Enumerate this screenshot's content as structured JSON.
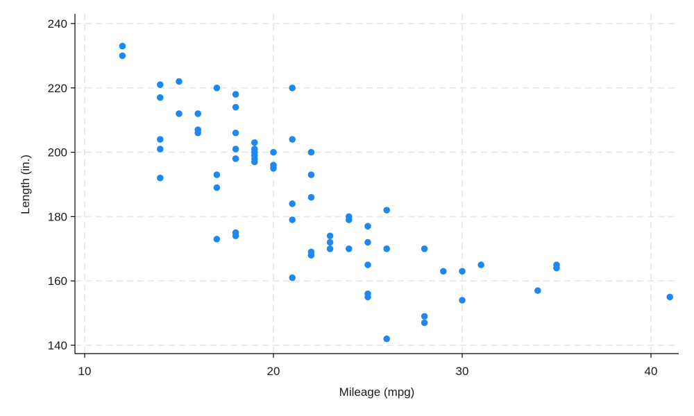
{
  "chart_data": {
    "type": "scatter",
    "title": "",
    "xlabel": "Mileage (mpg)",
    "ylabel": "Length (in.)",
    "xlim": [
      10,
      41
    ],
    "ylim": [
      140,
      240
    ],
    "xticks": [
      10,
      20,
      30,
      40
    ],
    "yticks": [
      140,
      160,
      180,
      200,
      220,
      240
    ],
    "grid": true,
    "legend": "none",
    "marker_color": "#1e88f0",
    "series": [
      {
        "points": [
          [
            12,
            233
          ],
          [
            12,
            230
          ],
          [
            14,
            221
          ],
          [
            14,
            217
          ],
          [
            14,
            204
          ],
          [
            14,
            201
          ],
          [
            14,
            192
          ],
          [
            15,
            222
          ],
          [
            15,
            212
          ],
          [
            16,
            212
          ],
          [
            16,
            207
          ],
          [
            16,
            206
          ],
          [
            17,
            220
          ],
          [
            17,
            193
          ],
          [
            17,
            189
          ],
          [
            17,
            173
          ],
          [
            18,
            218
          ],
          [
            18,
            214
          ],
          [
            18,
            206
          ],
          [
            18,
            201
          ],
          [
            18,
            198
          ],
          [
            18,
            198
          ],
          [
            18,
            175
          ],
          [
            18,
            174
          ],
          [
            19,
            203
          ],
          [
            19,
            201
          ],
          [
            19,
            200
          ],
          [
            19,
            199
          ],
          [
            19,
            198
          ],
          [
            19,
            197
          ],
          [
            20,
            200
          ],
          [
            20,
            196
          ],
          [
            20,
            195
          ],
          [
            21,
            220
          ],
          [
            21,
            204
          ],
          [
            21,
            184
          ],
          [
            21,
            179
          ],
          [
            21,
            161
          ],
          [
            22,
            200
          ],
          [
            22,
            193
          ],
          [
            22,
            186
          ],
          [
            22,
            169
          ],
          [
            22,
            168
          ],
          [
            23,
            174
          ],
          [
            23,
            172
          ],
          [
            23,
            170
          ],
          [
            24,
            180
          ],
          [
            24,
            179
          ],
          [
            24,
            170
          ],
          [
            25,
            177
          ],
          [
            25,
            172
          ],
          [
            25,
            165
          ],
          [
            25,
            156
          ],
          [
            25,
            155
          ],
          [
            26,
            182
          ],
          [
            26,
            170
          ],
          [
            26,
            142
          ],
          [
            28,
            170
          ],
          [
            28,
            149
          ],
          [
            28,
            147
          ],
          [
            29,
            163
          ],
          [
            30,
            163
          ],
          [
            30,
            154
          ],
          [
            31,
            165
          ],
          [
            34,
            157
          ],
          [
            35,
            165
          ],
          [
            35,
            164
          ],
          [
            41,
            155
          ]
        ]
      }
    ]
  }
}
